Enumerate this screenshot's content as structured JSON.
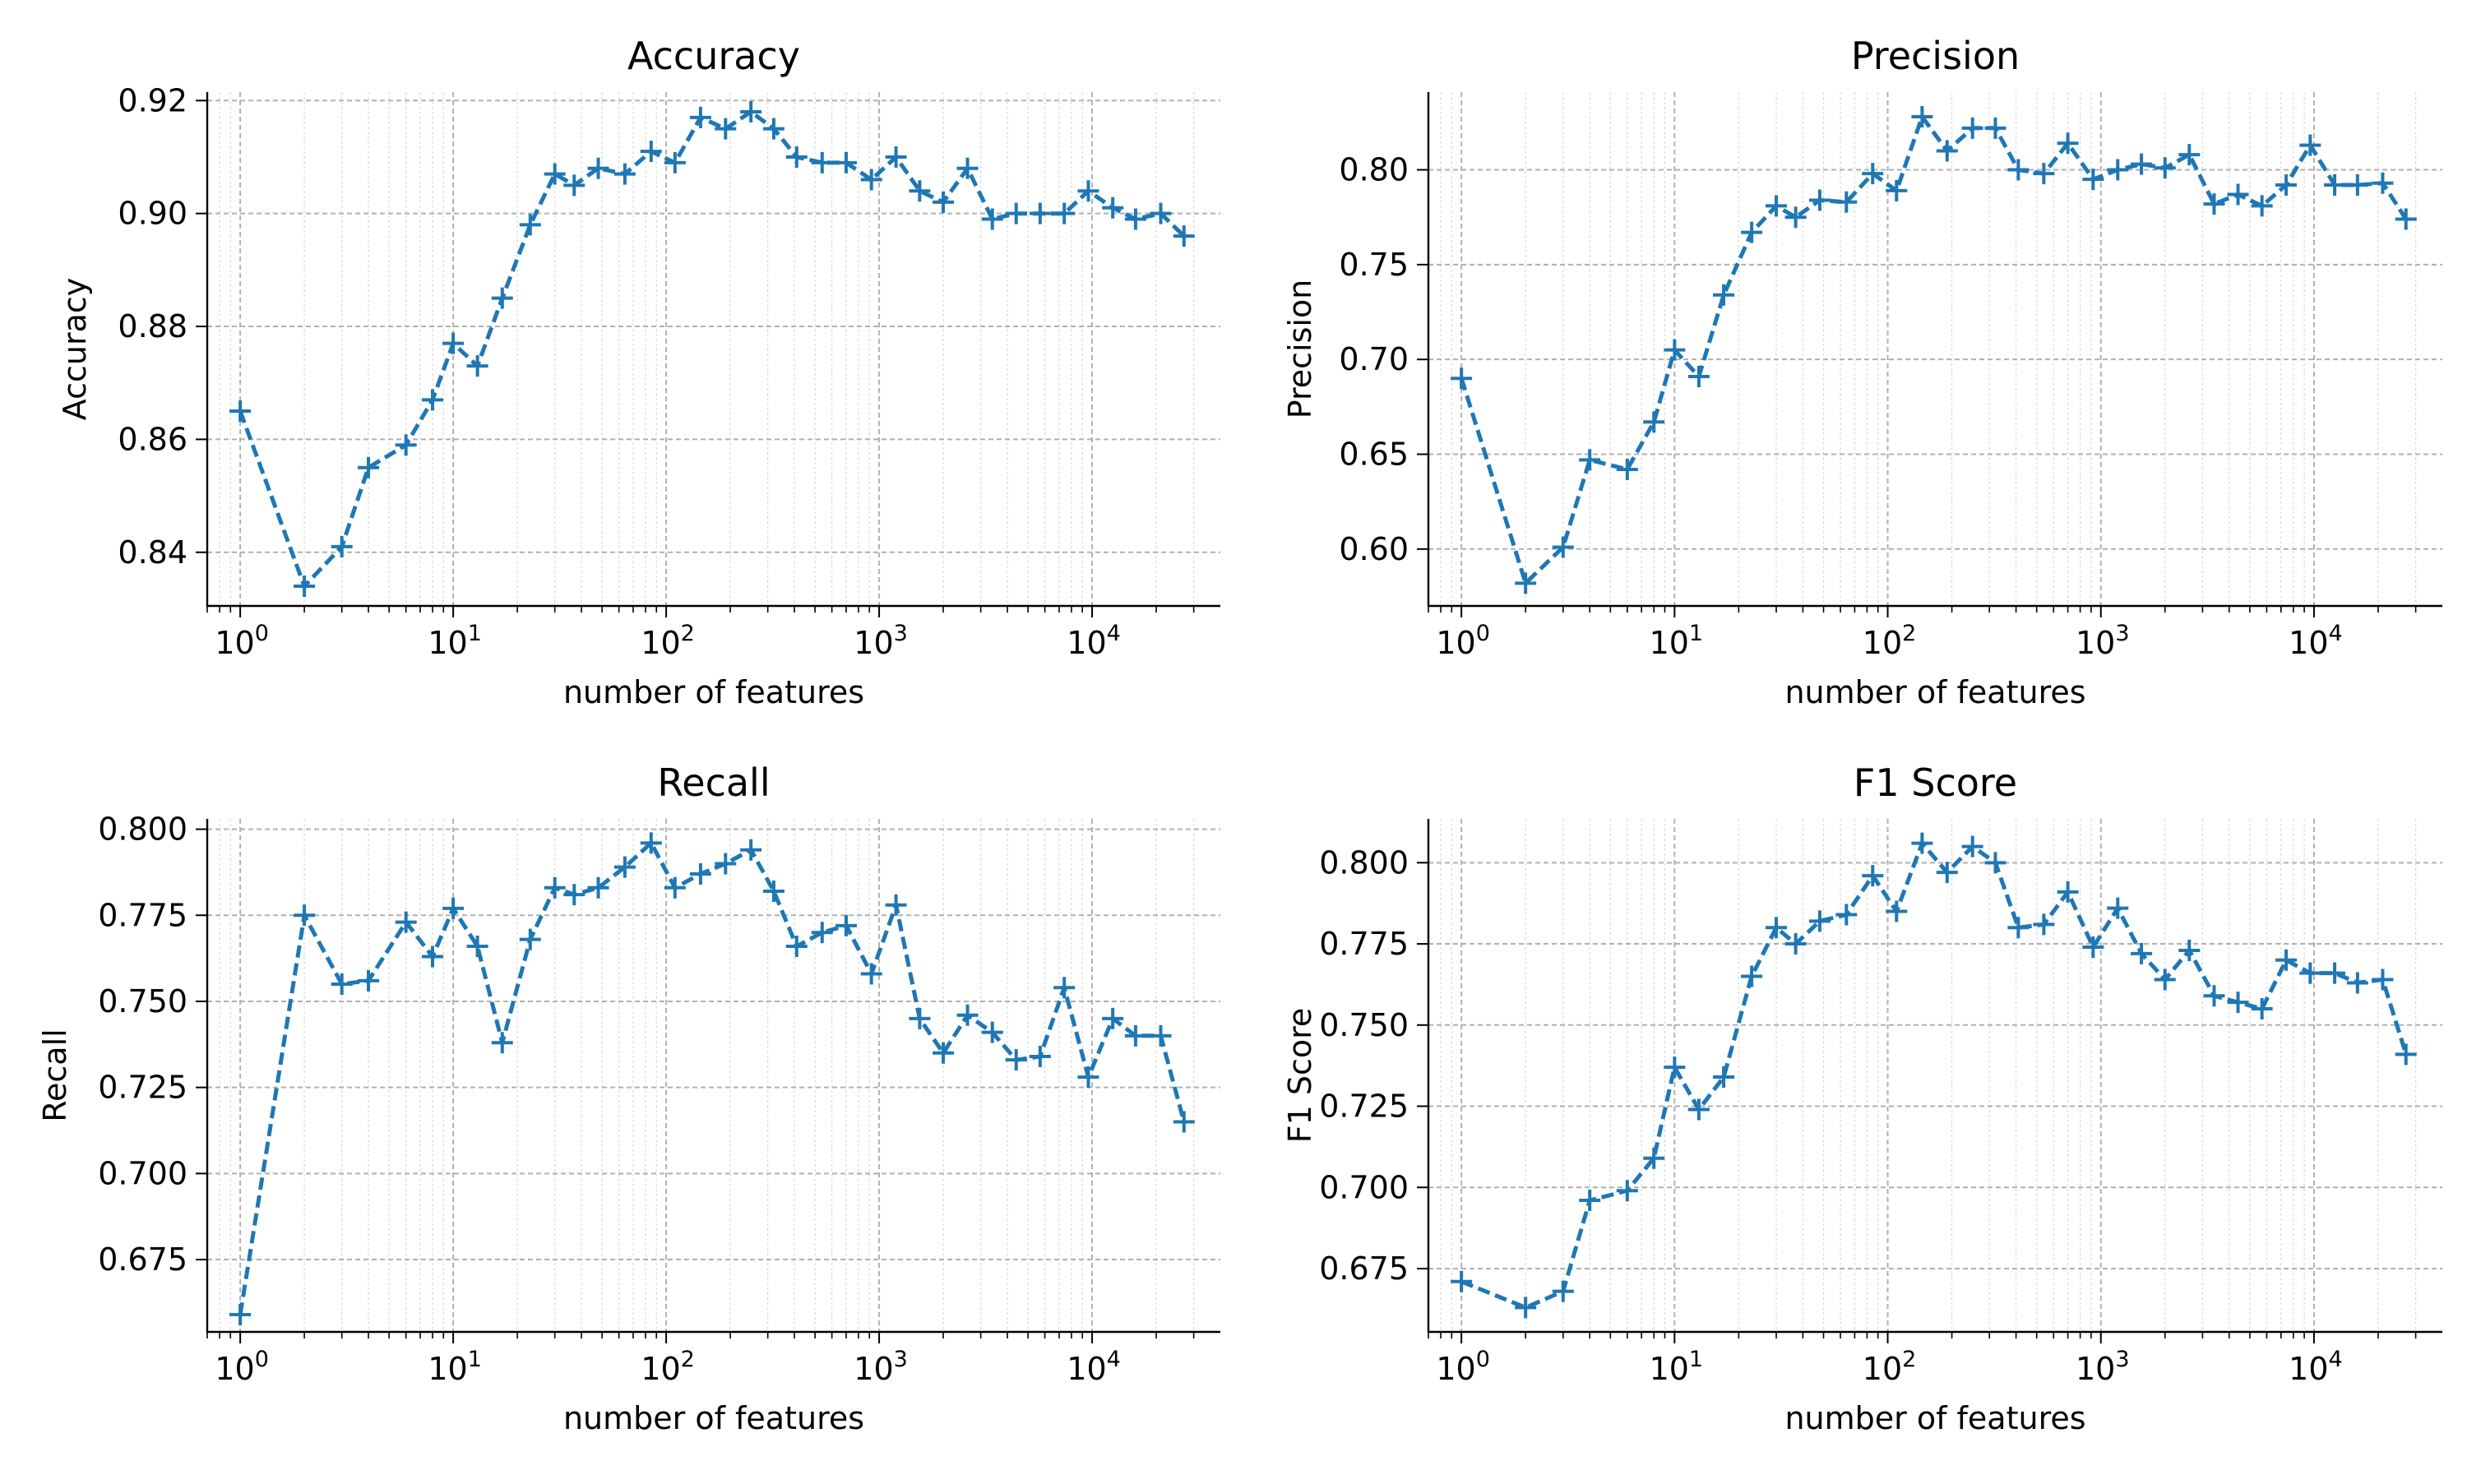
{
  "figure": {
    "xlabel": "number of features",
    "color": "#1f77b4"
  },
  "chart_data": [
    {
      "type": "line",
      "title": "Accuracy",
      "xlabel": "number of features",
      "ylabel": "Accuracy",
      "xscale": "log",
      "xlim": [
        0.7,
        40000
      ],
      "ylim": [
        0.8305,
        0.9215
      ],
      "grid": true,
      "line_style": "dashed",
      "marker": "+",
      "x_tick_labels": [
        "0",
        "1",
        "2",
        "3",
        "4"
      ],
      "y_ticks": [
        0.84,
        0.86,
        0.88,
        0.9,
        0.92
      ],
      "y_tick_labels": [
        "0.84",
        "0.86",
        "0.88",
        "0.90",
        "0.92"
      ],
      "x": [
        1,
        2,
        3,
        4,
        6,
        8,
        10,
        13,
        17,
        23,
        30,
        37,
        48,
        64,
        85,
        110,
        145,
        190,
        250,
        320,
        410,
        540,
        700,
        920,
        1200,
        1550,
        2000,
        2600,
        3400,
        4400,
        5700,
        7400,
        9600,
        12500,
        16000,
        21000,
        27000
      ],
      "series": [
        {
          "values": [
            0.865,
            0.834,
            0.841,
            0.855,
            0.859,
            0.867,
            0.877,
            0.873,
            0.885,
            0.898,
            0.907,
            0.905,
            0.908,
            0.907,
            0.911,
            0.909,
            0.917,
            0.915,
            0.918,
            0.915,
            0.91,
            0.909,
            0.909,
            0.906,
            0.91,
            0.904,
            0.902,
            0.908,
            0.899,
            0.9,
            0.9,
            0.9,
            0.904,
            0.901,
            0.899,
            0.9,
            0.896
          ]
        }
      ]
    },
    {
      "type": "line",
      "title": "Precision",
      "xlabel": "number of features",
      "ylabel": "Precision",
      "xscale": "log",
      "xlim": [
        0.7,
        40000
      ],
      "ylim": [
        0.57,
        0.841
      ],
      "grid": true,
      "line_style": "dashed",
      "marker": "+",
      "x_tick_labels": [
        "0",
        "1",
        "2",
        "3",
        "4"
      ],
      "y_ticks": [
        0.6,
        0.65,
        0.7,
        0.75,
        0.8
      ],
      "y_tick_labels": [
        "0.60",
        "0.65",
        "0.70",
        "0.75",
        "0.80"
      ],
      "x": [
        1,
        2,
        3,
        4,
        6,
        8,
        10,
        13,
        17,
        23,
        30,
        37,
        48,
        64,
        85,
        110,
        145,
        190,
        250,
        320,
        410,
        540,
        700,
        920,
        1200,
        1550,
        2000,
        2600,
        3400,
        4400,
        5700,
        7400,
        9600,
        12500,
        16000,
        21000,
        27000
      ],
      "series": [
        {
          "values": [
            0.69,
            0.582,
            0.601,
            0.647,
            0.642,
            0.667,
            0.705,
            0.691,
            0.734,
            0.767,
            0.781,
            0.775,
            0.784,
            0.783,
            0.798,
            0.789,
            0.828,
            0.81,
            0.822,
            0.822,
            0.8,
            0.798,
            0.814,
            0.795,
            0.8,
            0.803,
            0.801,
            0.808,
            0.782,
            0.787,
            0.781,
            0.792,
            0.813,
            0.792,
            0.792,
            0.793,
            0.774
          ]
        }
      ]
    },
    {
      "type": "line",
      "title": "Recall",
      "xlabel": "number of features",
      "ylabel": "Recall",
      "xscale": "log",
      "xlim": [
        0.7,
        40000
      ],
      "ylim": [
        0.654,
        0.803
      ],
      "grid": true,
      "line_style": "dashed",
      "marker": "+",
      "x_tick_labels": [
        "0",
        "1",
        "2",
        "3",
        "4"
      ],
      "y_ticks": [
        0.675,
        0.7,
        0.725,
        0.75,
        0.775,
        0.8
      ],
      "y_tick_labels": [
        "0.675",
        "0.700",
        "0.725",
        "0.750",
        "0.775",
        "0.800"
      ],
      "x": [
        1,
        2,
        3,
        4,
        6,
        8,
        10,
        13,
        17,
        23,
        30,
        37,
        48,
        64,
        85,
        110,
        145,
        190,
        250,
        320,
        410,
        540,
        700,
        920,
        1200,
        1550,
        2000,
        2600,
        3400,
        4400,
        5700,
        7400,
        9600,
        12500,
        16000,
        21000,
        27000
      ],
      "series": [
        {
          "values": [
            0.659,
            0.775,
            0.755,
            0.756,
            0.773,
            0.763,
            0.777,
            0.766,
            0.738,
            0.768,
            0.783,
            0.781,
            0.783,
            0.789,
            0.796,
            0.783,
            0.787,
            0.79,
            0.794,
            0.782,
            0.766,
            0.77,
            0.772,
            0.758,
            0.778,
            0.745,
            0.735,
            0.746,
            0.741,
            0.733,
            0.734,
            0.754,
            0.728,
            0.745,
            0.74,
            0.74,
            0.715
          ]
        }
      ]
    },
    {
      "type": "line",
      "title": "F1 Score",
      "xlabel": "number of features",
      "ylabel": "F1 Score",
      "xscale": "log",
      "xlim": [
        0.7,
        40000
      ],
      "ylim": [
        0.6555,
        0.8135
      ],
      "grid": true,
      "line_style": "dashed",
      "marker": "+",
      "x_tick_labels": [
        "0",
        "1",
        "2",
        "3",
        "4"
      ],
      "y_ticks": [
        0.675,
        0.7,
        0.725,
        0.75,
        0.775,
        0.8
      ],
      "y_tick_labels": [
        "0.675",
        "0.700",
        "0.725",
        "0.750",
        "0.775",
        "0.800"
      ],
      "x": [
        1,
        2,
        3,
        4,
        6,
        8,
        10,
        13,
        17,
        23,
        30,
        37,
        48,
        64,
        85,
        110,
        145,
        190,
        250,
        320,
        410,
        540,
        700,
        920,
        1200,
        1550,
        2000,
        2600,
        3400,
        4400,
        5700,
        7400,
        9600,
        12500,
        16000,
        21000,
        27000
      ],
      "series": [
        {
          "values": [
            0.671,
            0.663,
            0.668,
            0.696,
            0.699,
            0.709,
            0.737,
            0.724,
            0.734,
            0.765,
            0.78,
            0.775,
            0.782,
            0.784,
            0.796,
            0.785,
            0.806,
            0.797,
            0.805,
            0.8,
            0.78,
            0.781,
            0.791,
            0.774,
            0.786,
            0.772,
            0.764,
            0.773,
            0.759,
            0.757,
            0.755,
            0.77,
            0.766,
            0.766,
            0.763,
            0.764,
            0.741
          ]
        }
      ]
    }
  ]
}
